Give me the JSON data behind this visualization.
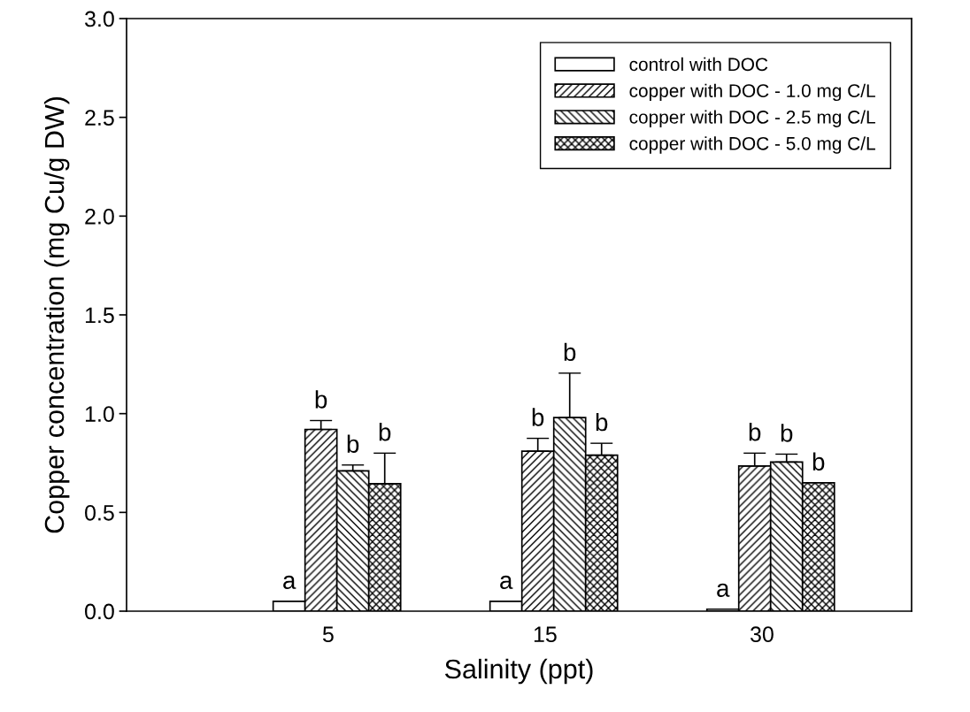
{
  "chart_data": {
    "type": "bar",
    "xlabel": "Salinity (ppt)",
    "ylabel": "Copper concentration (mg Cu/g DW)",
    "categories": [
      "5",
      "15",
      "30"
    ],
    "series": [
      {
        "name": "control with DOC",
        "color": "#ffffff",
        "values": [
          0.05,
          0.05,
          0.01
        ],
        "errors": [
          null,
          null,
          null
        ],
        "value_labels": [
          "a",
          "a",
          "a"
        ]
      },
      {
        "name": "copper with DOC - 1.0 mg C/L",
        "color": "#000000",
        "values": [
          0.92,
          0.81,
          0.735
        ],
        "errors": [
          0.045,
          0.065,
          0.065
        ],
        "value_labels": [
          "b",
          "b",
          "b"
        ]
      },
      {
        "name": "copper with DOC - 2.5 mg C/L",
        "color": "#000000",
        "values": [
          0.71,
          0.98,
          0.755
        ],
        "errors": [
          0.03,
          0.225,
          0.04
        ],
        "value_labels": [
          "b",
          "b",
          "b"
        ]
      },
      {
        "name": "copper with DOC - 5.0 mg C/L",
        "color": "#000000",
        "values": [
          0.645,
          0.79,
          0.65
        ],
        "errors": [
          0.155,
          0.06,
          null
        ],
        "value_labels": [
          "b",
          "b",
          "b"
        ]
      }
    ],
    "ylim": [
      0,
      3.0
    ],
    "yticks": [
      {
        "value": 0,
        "label": "0.0"
      },
      {
        "value": 0.5,
        "label": "0.5"
      },
      {
        "value": 1.0,
        "label": "1.0"
      },
      {
        "value": 1.5,
        "label": "1.5"
      },
      {
        "value": 2.0,
        "label": "2.0"
      },
      {
        "value": 2.5,
        "label": "2.5"
      },
      {
        "value": 3.0,
        "label": "3.0"
      }
    ],
    "legend": "top right",
    "grid": false
  }
}
